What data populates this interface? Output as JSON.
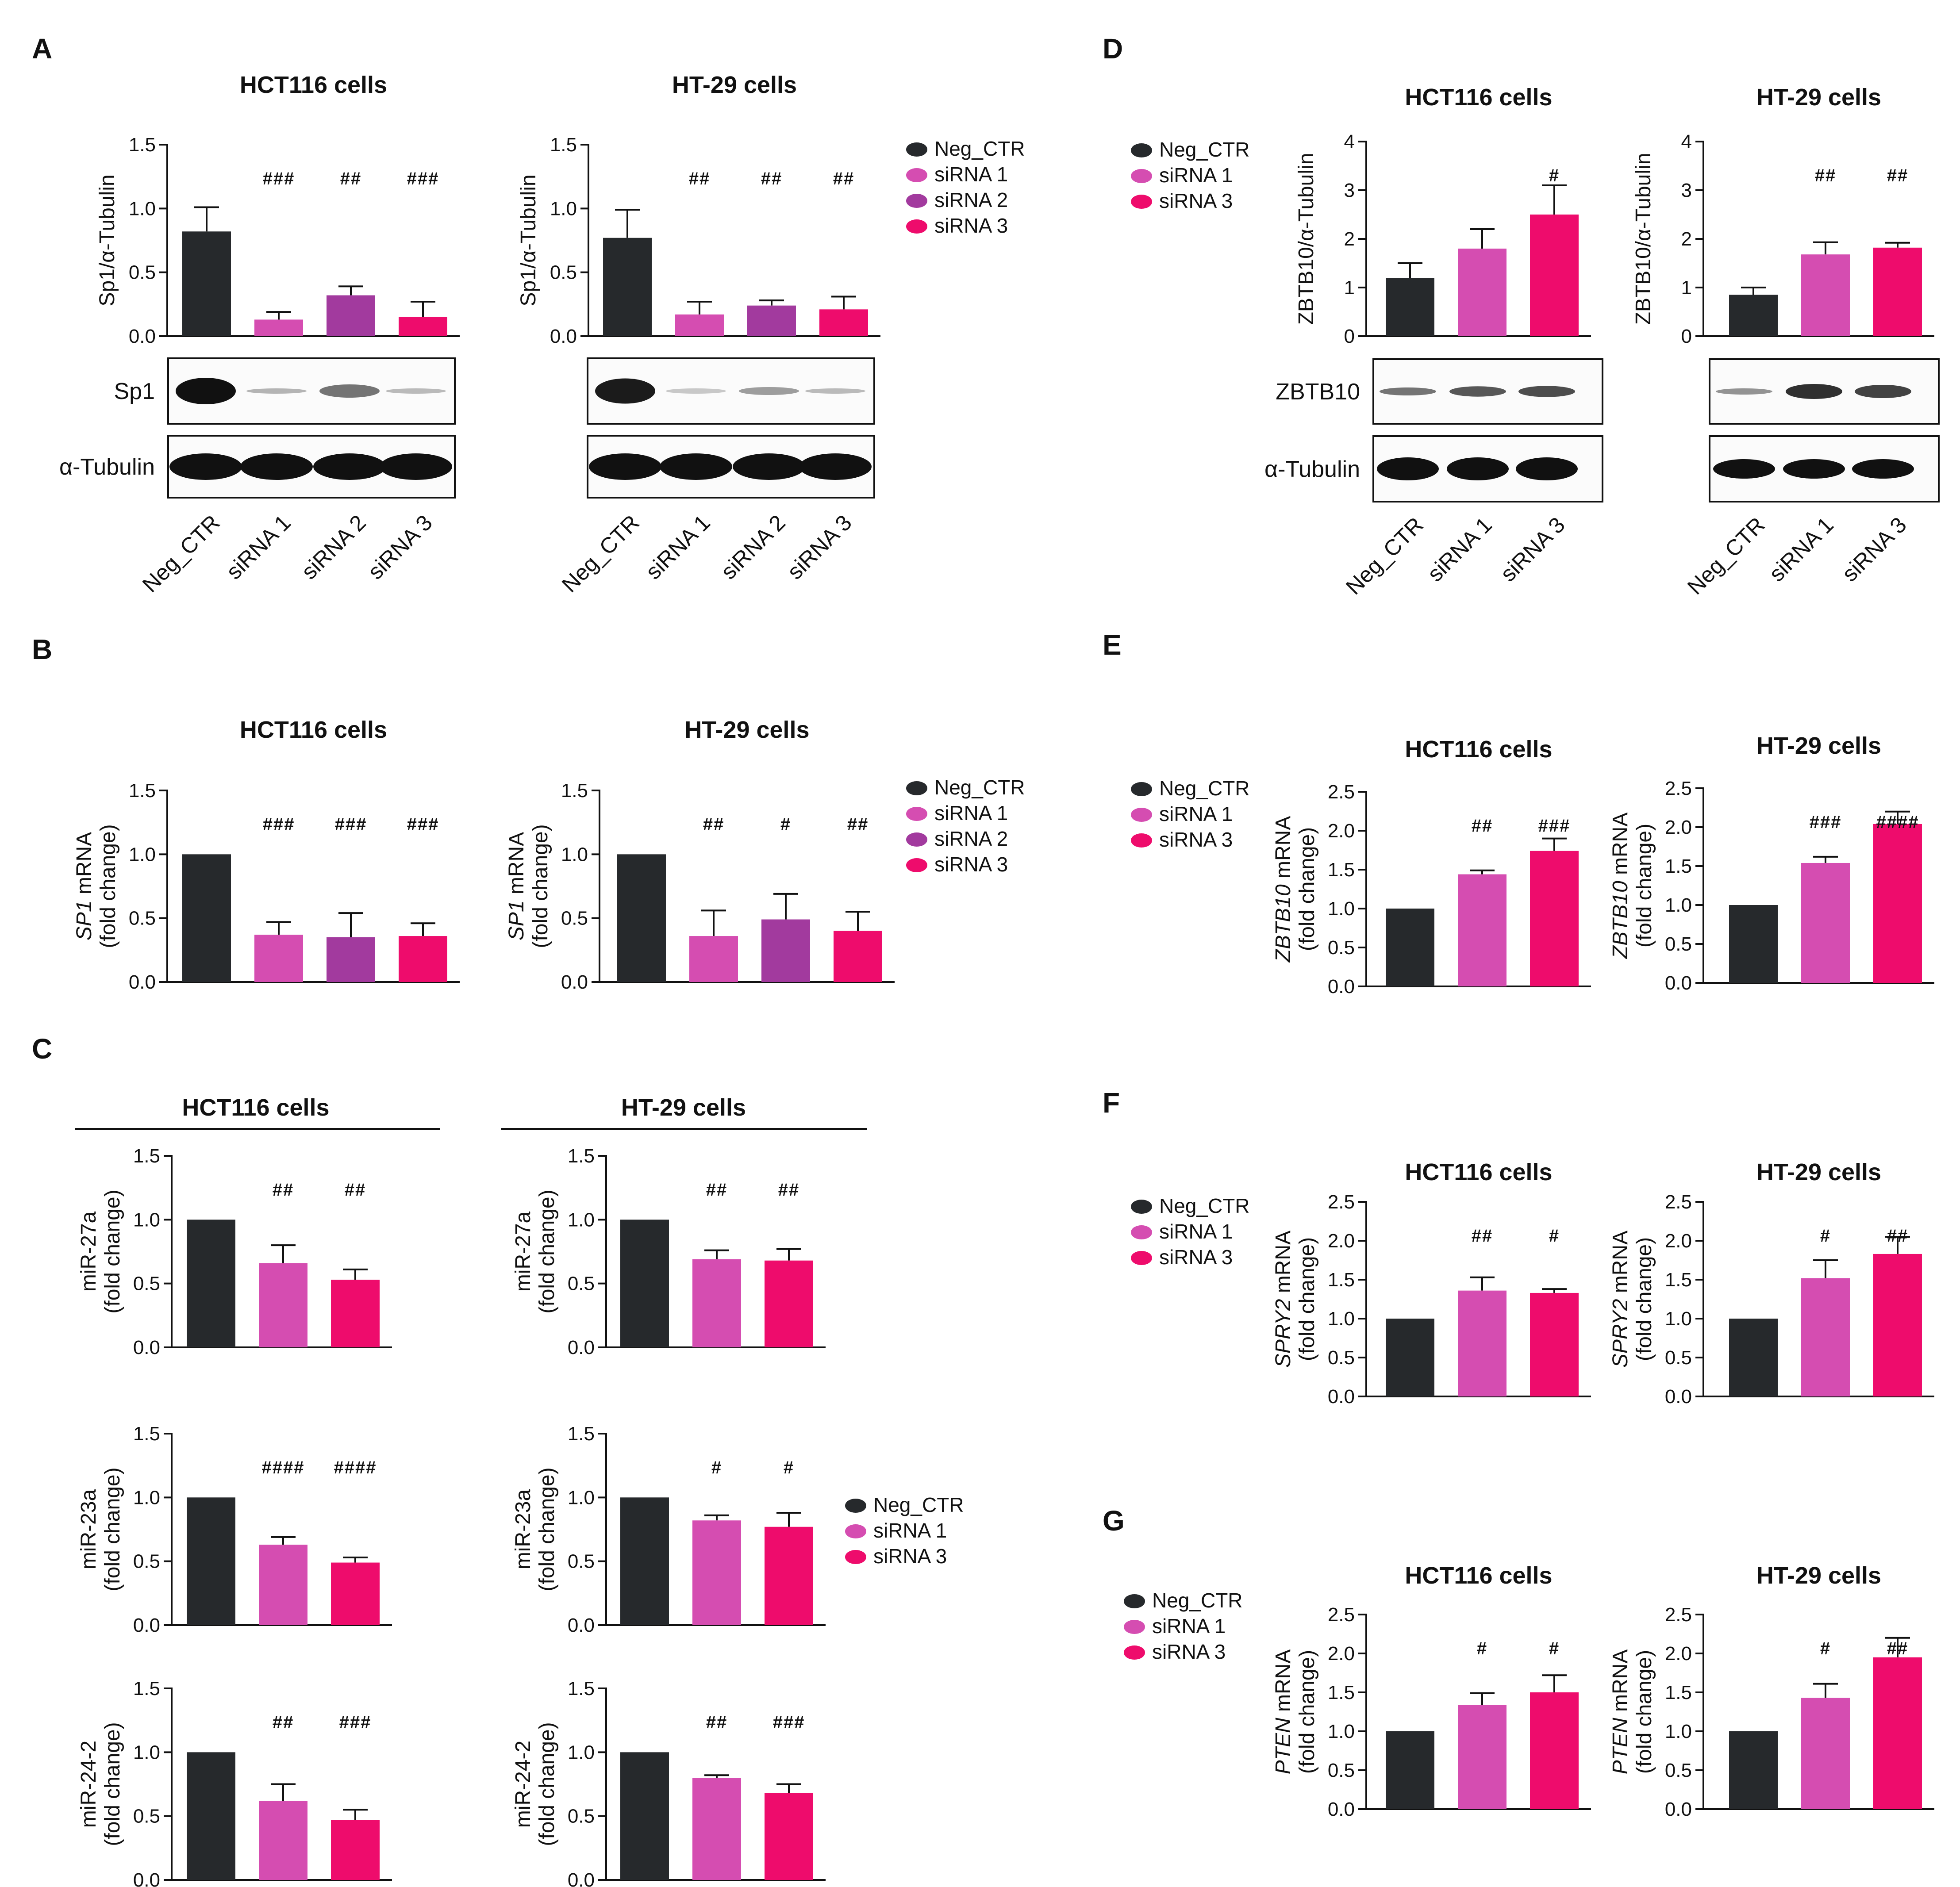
{
  "colors": {
    "neg": "#26292c",
    "s1": "#d54db1",
    "s2": "#a23a9e",
    "s3": "#ee0c6c"
  },
  "legend_all": [
    "Neg_CTR",
    "siRNA 1",
    "siRNA 2",
    "siRNA 3"
  ],
  "legend_13": [
    "Neg_CTR",
    "siRNA 1",
    "siRNA 3"
  ],
  "lanes4": [
    "Neg_CTR",
    "siRNA 1",
    "siRNA 2",
    "siRNA 3"
  ],
  "lanes3": [
    "Neg_CTR",
    "siRNA 1",
    "siRNA 3"
  ],
  "blot_labels": {
    "sp1": "Sp1",
    "tubulin": "α-Tubulin",
    "zbtb10": "ZBTB10"
  },
  "chart_data": [
    {
      "id": "A1",
      "panel": "A",
      "type": "bar",
      "title": "HCT116 cells",
      "ylabel": [
        "Sp1/α-Tubulin"
      ],
      "ylim": [
        0,
        1.5
      ],
      "yticks": [
        "0.0",
        "0.5",
        "1.0",
        "1.5"
      ],
      "categories": [
        "Neg_CTR",
        "siRNA 1",
        "siRNA 2",
        "siRNA 3"
      ],
      "values": [
        0.82,
        0.13,
        0.32,
        0.15
      ],
      "errors": [
        0.19,
        0.06,
        0.07,
        0.12
      ],
      "sig": [
        "",
        "###",
        "##",
        "###"
      ]
    },
    {
      "id": "A2",
      "panel": "",
      "type": "bar",
      "title": "HT-29 cells",
      "ylabel": [
        "Sp1/α-Tubulin"
      ],
      "ylim": [
        0,
        1.5
      ],
      "yticks": [
        "0.0",
        "0.5",
        "1.0",
        "1.5"
      ],
      "categories": [
        "Neg_CTR",
        "siRNA 1",
        "siRNA 2",
        "siRNA 3"
      ],
      "values": [
        0.77,
        0.17,
        0.24,
        0.21
      ],
      "errors": [
        0.22,
        0.1,
        0.04,
        0.1
      ],
      "sig": [
        "",
        "##",
        "##",
        "##"
      ]
    },
    {
      "id": "B1",
      "panel": "B",
      "type": "bar",
      "title": "HCT116 cells",
      "ylabel": [
        "SP1 mRNA",
        "(fold change)"
      ],
      "ylim": [
        0,
        1.5
      ],
      "yticks": [
        "0.0",
        "0.5",
        "1.0",
        "1.5"
      ],
      "categories": [
        "Neg_CTR",
        "siRNA 1",
        "siRNA 2",
        "siRNA 3"
      ],
      "values": [
        1.0,
        0.37,
        0.35,
        0.36
      ],
      "errors": [
        0,
        0.1,
        0.19,
        0.1
      ],
      "sig": [
        "",
        "###",
        "###",
        "###"
      ]
    },
    {
      "id": "B2",
      "panel": "",
      "type": "bar",
      "title": "HT-29 cells",
      "ylabel": [
        "SP1 mRNA",
        "(fold change)"
      ],
      "ylim": [
        0,
        1.5
      ],
      "yticks": [
        "0.0",
        "0.5",
        "1.0",
        "1.5"
      ],
      "categories": [
        "Neg_CTR",
        "siRNA 1",
        "siRNA 2",
        "siRNA 3"
      ],
      "values": [
        1.0,
        0.36,
        0.49,
        0.4
      ],
      "errors": [
        0,
        0.2,
        0.2,
        0.15
      ],
      "sig": [
        "",
        "##",
        "#",
        "##"
      ]
    },
    {
      "id": "C1",
      "panel": "C",
      "type": "bar",
      "title": "HCT116 cells",
      "ylabel": [
        "miR-27a",
        "(fold change)"
      ],
      "ylim": [
        0,
        1.5
      ],
      "yticks": [
        "0.0",
        "0.5",
        "1.0",
        "1.5"
      ],
      "categories": [
        "Neg_CTR",
        "siRNA 1",
        "siRNA 3"
      ],
      "values": [
        1.0,
        0.66,
        0.53
      ],
      "errors": [
        0,
        0.14,
        0.08
      ],
      "sig": [
        "",
        "##",
        "##"
      ]
    },
    {
      "id": "C2",
      "panel": "",
      "type": "bar",
      "title": "HT-29 cells",
      "ylabel": [
        "miR-27a",
        "(fold change)"
      ],
      "ylim": [
        0,
        1.5
      ],
      "yticks": [
        "0.0",
        "0.5",
        "1.0",
        "1.5"
      ],
      "categories": [
        "Neg_CTR",
        "siRNA 1",
        "siRNA 3"
      ],
      "values": [
        1.0,
        0.69,
        0.68
      ],
      "errors": [
        0,
        0.07,
        0.09
      ],
      "sig": [
        "",
        "##",
        "##"
      ]
    },
    {
      "id": "C3",
      "panel": "",
      "type": "bar",
      "title": "",
      "ylabel": [
        "miR-23a",
        "(fold change)"
      ],
      "ylim": [
        0,
        1.5
      ],
      "yticks": [
        "0.0",
        "0.5",
        "1.0",
        "1.5"
      ],
      "categories": [
        "Neg_CTR",
        "siRNA 1",
        "siRNA 3"
      ],
      "values": [
        1.0,
        0.63,
        0.49
      ],
      "errors": [
        0,
        0.06,
        0.04
      ],
      "sig": [
        "",
        "####",
        "####"
      ]
    },
    {
      "id": "C4",
      "panel": "",
      "type": "bar",
      "title": "",
      "ylabel": [
        "miR-23a",
        "(fold change)"
      ],
      "ylim": [
        0,
        1.5
      ],
      "yticks": [
        "0.0",
        "0.5",
        "1.0",
        "1.5"
      ],
      "categories": [
        "Neg_CTR",
        "siRNA 1",
        "siRNA 3"
      ],
      "values": [
        1.0,
        0.82,
        0.77
      ],
      "errors": [
        0,
        0.04,
        0.11
      ],
      "sig": [
        "",
        "#",
        "#"
      ]
    },
    {
      "id": "C5",
      "panel": "",
      "type": "bar",
      "title": "",
      "ylabel": [
        "miR-24-2",
        "(fold change)"
      ],
      "ylim": [
        0,
        1.5
      ],
      "yticks": [
        "0.0",
        "0.5",
        "1.0",
        "1.5"
      ],
      "categories": [
        "Neg_CTR",
        "siRNA 1",
        "siRNA 3"
      ],
      "values": [
        1.0,
        0.62,
        0.47
      ],
      "errors": [
        0,
        0.13,
        0.08
      ],
      "sig": [
        "",
        "##",
        "###"
      ]
    },
    {
      "id": "C6",
      "panel": "",
      "type": "bar",
      "title": "",
      "ylabel": [
        "miR-24-2",
        "(fold change)"
      ],
      "ylim": [
        0,
        1.5
      ],
      "yticks": [
        "0.0",
        "0.5",
        "1.0",
        "1.5"
      ],
      "categories": [
        "Neg_CTR",
        "siRNA 1",
        "siRNA 3"
      ],
      "values": [
        1.0,
        0.8,
        0.68
      ],
      "errors": [
        0,
        0.02,
        0.07
      ],
      "sig": [
        "",
        "##",
        "###"
      ]
    },
    {
      "id": "D1",
      "panel": "D",
      "type": "bar",
      "title": "HCT116 cells",
      "ylabel": [
        "ZBTB10/α-Tubulin"
      ],
      "ylim": [
        0,
        4
      ],
      "yticks": [
        "0",
        "1",
        "2",
        "3",
        "4"
      ],
      "categories": [
        "Neg_CTR",
        "siRNA 1",
        "siRNA 3"
      ],
      "values": [
        1.2,
        1.8,
        2.5
      ],
      "errors": [
        0.3,
        0.4,
        0.6
      ],
      "sig": [
        "",
        "",
        "#"
      ]
    },
    {
      "id": "D2",
      "panel": "",
      "type": "bar",
      "title": "HT-29 cells",
      "ylabel": [
        "ZBTB10/α-Tubulin"
      ],
      "ylim": [
        0,
        4
      ],
      "yticks": [
        "0",
        "1",
        "2",
        "3",
        "4"
      ],
      "categories": [
        "Neg_CTR",
        "siRNA 1",
        "siRNA 3"
      ],
      "values": [
        0.85,
        1.68,
        1.82
      ],
      "errors": [
        0.15,
        0.25,
        0.1
      ],
      "sig": [
        "",
        "##",
        "##"
      ]
    },
    {
      "id": "E1",
      "panel": "E",
      "type": "bar",
      "title": "HCT116 cells",
      "ylabel": [
        "ZBTB10 mRNA",
        "(fold change)"
      ],
      "ylim": [
        0,
        2.5
      ],
      "yticks": [
        "0.0",
        "0.5",
        "1.0",
        "1.5",
        "2.0",
        "2.5"
      ],
      "categories": [
        "Neg_CTR",
        "siRNA 1",
        "siRNA 3"
      ],
      "values": [
        1.0,
        1.44,
        1.74
      ],
      "errors": [
        0,
        0.05,
        0.16
      ],
      "sig": [
        "",
        "##",
        "###"
      ]
    },
    {
      "id": "E2",
      "panel": "",
      "type": "bar",
      "title": "HT-29 cells",
      "ylabel": [
        "ZBTB10 mRNA",
        "(fold change)"
      ],
      "ylim": [
        0,
        2.5
      ],
      "yticks": [
        "0.0",
        "0.5",
        "1.0",
        "1.5",
        "2.0",
        "2.5"
      ],
      "categories": [
        "Neg_CTR",
        "siRNA 1",
        "siRNA 3"
      ],
      "values": [
        1.0,
        1.54,
        2.04
      ],
      "errors": [
        0,
        0.08,
        0.16
      ],
      "sig": [
        "",
        "###",
        "####"
      ]
    },
    {
      "id": "F1",
      "panel": "F",
      "type": "bar",
      "title": "HCT116 cells",
      "ylabel": [
        "SPRY2 mRNA",
        "(fold change)"
      ],
      "ylim": [
        0,
        2.5
      ],
      "yticks": [
        "0.0",
        "0.5",
        "1.0",
        "1.5",
        "2.0",
        "2.5"
      ],
      "categories": [
        "Neg_CTR",
        "siRNA 1",
        "siRNA 3"
      ],
      "values": [
        1.0,
        1.36,
        1.33
      ],
      "errors": [
        0,
        0.17,
        0.05
      ],
      "sig": [
        "",
        "##",
        "#"
      ]
    },
    {
      "id": "F2",
      "panel": "",
      "type": "bar",
      "title": "HT-29 cells",
      "ylabel": [
        "SPRY2 mRNA",
        "(fold change)"
      ],
      "ylim": [
        0,
        2.5
      ],
      "yticks": [
        "0.0",
        "0.5",
        "1.0",
        "1.5",
        "2.0",
        "2.5"
      ],
      "categories": [
        "Neg_CTR",
        "siRNA 1",
        "siRNA 3"
      ],
      "values": [
        1.0,
        1.52,
        1.83
      ],
      "errors": [
        0,
        0.23,
        0.22
      ],
      "sig": [
        "",
        "#",
        "##"
      ]
    },
    {
      "id": "G1",
      "panel": "G",
      "type": "bar",
      "title": "HCT116 cells",
      "ylabel": [
        "PTEN mRNA",
        "(fold change)"
      ],
      "ylim": [
        0,
        2.5
      ],
      "yticks": [
        "0.0",
        "0.5",
        "1.0",
        "1.5",
        "2.0",
        "2.5"
      ],
      "categories": [
        "Neg_CTR",
        "siRNA 1",
        "siRNA 3"
      ],
      "values": [
        1.0,
        1.34,
        1.5
      ],
      "errors": [
        0,
        0.15,
        0.22
      ],
      "sig": [
        "",
        "#",
        "#"
      ]
    },
    {
      "id": "G2",
      "panel": "",
      "type": "bar",
      "title": "HT-29 cells",
      "ylabel": [
        "PTEN mRNA",
        "(fold change)"
      ],
      "ylim": [
        0,
        2.5
      ],
      "yticks": [
        "0.0",
        "0.5",
        "1.0",
        "1.5",
        "2.0",
        "2.5"
      ],
      "categories": [
        "Neg_CTR",
        "siRNA 1",
        "siRNA 3"
      ],
      "values": [
        1.0,
        1.43,
        1.95
      ],
      "errors": [
        0,
        0.18,
        0.25
      ],
      "sig": [
        "",
        "#",
        "##"
      ]
    }
  ]
}
